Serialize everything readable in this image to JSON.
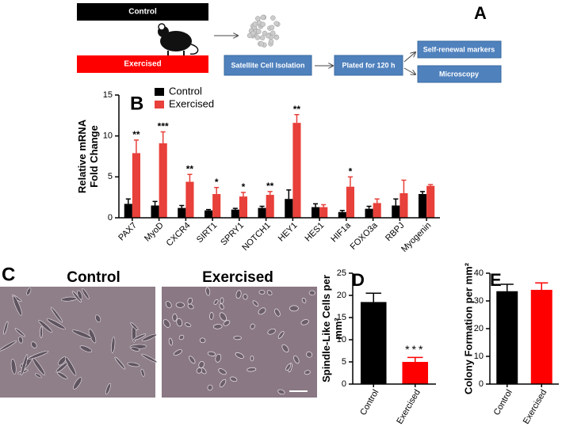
{
  "diagram": {
    "label": "A",
    "control": "Control",
    "exercised": "Exercised",
    "isolation": "Satellite Cell Isolation",
    "plated": "Plated for 120 h",
    "markers": "Self-renewal markers",
    "microscopy": "Microscopy"
  },
  "images": {
    "label": "C",
    "control": "Control",
    "exercised": "Exercised"
  },
  "chart_data": [
    {
      "type": "grouped-bar",
      "panel": "B",
      "ylabel": [
        "Relative mRNA",
        "Fold Change"
      ],
      "categories": [
        "PAX7",
        "MyoD",
        "CXCR4",
        "SIRT1",
        "SPRY1",
        "NOTCH1",
        "HEY1",
        "HES1",
        "HIF1a",
        "FOXO3a",
        "RBPJ",
        "Myogenin"
      ],
      "series": [
        {
          "name": "Control",
          "color": "#000000",
          "values": [
            1.7,
            1.5,
            1.2,
            0.9,
            1.0,
            1.2,
            2.3,
            1.3,
            0.7,
            1.1,
            1.5,
            2.9
          ],
          "errors": [
            0.6,
            0.5,
            0.3,
            0.1,
            0.15,
            0.2,
            1.1,
            0.4,
            0.2,
            0.3,
            0.8,
            0.3
          ]
        },
        {
          "name": "Exercised",
          "color": "#e8403a",
          "values": [
            7.9,
            9.1,
            4.4,
            2.9,
            2.6,
            2.8,
            11.6,
            1.3,
            3.8,
            1.8,
            3.0,
            3.9
          ],
          "errors": [
            1.6,
            1.4,
            0.9,
            0.8,
            0.5,
            0.4,
            1.0,
            0.3,
            1.2,
            0.5,
            1.6,
            0.15
          ]
        }
      ],
      "significance": [
        "**",
        "***",
        "**",
        "*",
        "*",
        "**",
        "**",
        null,
        "*",
        null,
        null,
        null
      ],
      "ylim": [
        0,
        15
      ],
      "yticks": [
        0,
        5,
        10,
        15
      ]
    },
    {
      "type": "bar",
      "panel": "D",
      "ylabel": [
        "Spindle-Like Cells per",
        "mm²"
      ],
      "categories": [
        "Control",
        "Exercised"
      ],
      "colors": [
        "#000000",
        "#ff0000"
      ],
      "values": [
        18.5,
        5.0
      ],
      "errors": [
        2.0,
        1.0
      ],
      "significance": [
        null,
        "***"
      ],
      "ylim": [
        0,
        25
      ],
      "yticks": [
        0,
        5,
        10,
        15,
        20,
        25
      ]
    },
    {
      "type": "bar",
      "panel": "E",
      "ylabel": [
        "Colony Formation per mm²"
      ],
      "categories": [
        "Control",
        "Exercised"
      ],
      "colors": [
        "#000000",
        "#ff0000"
      ],
      "values": [
        33.5,
        34.0
      ],
      "errors": [
        2.5,
        2.5
      ],
      "significance": [
        null,
        null
      ],
      "ylim": [
        0,
        40
      ],
      "yticks": [
        0,
        10,
        20,
        30,
        40
      ]
    }
  ]
}
